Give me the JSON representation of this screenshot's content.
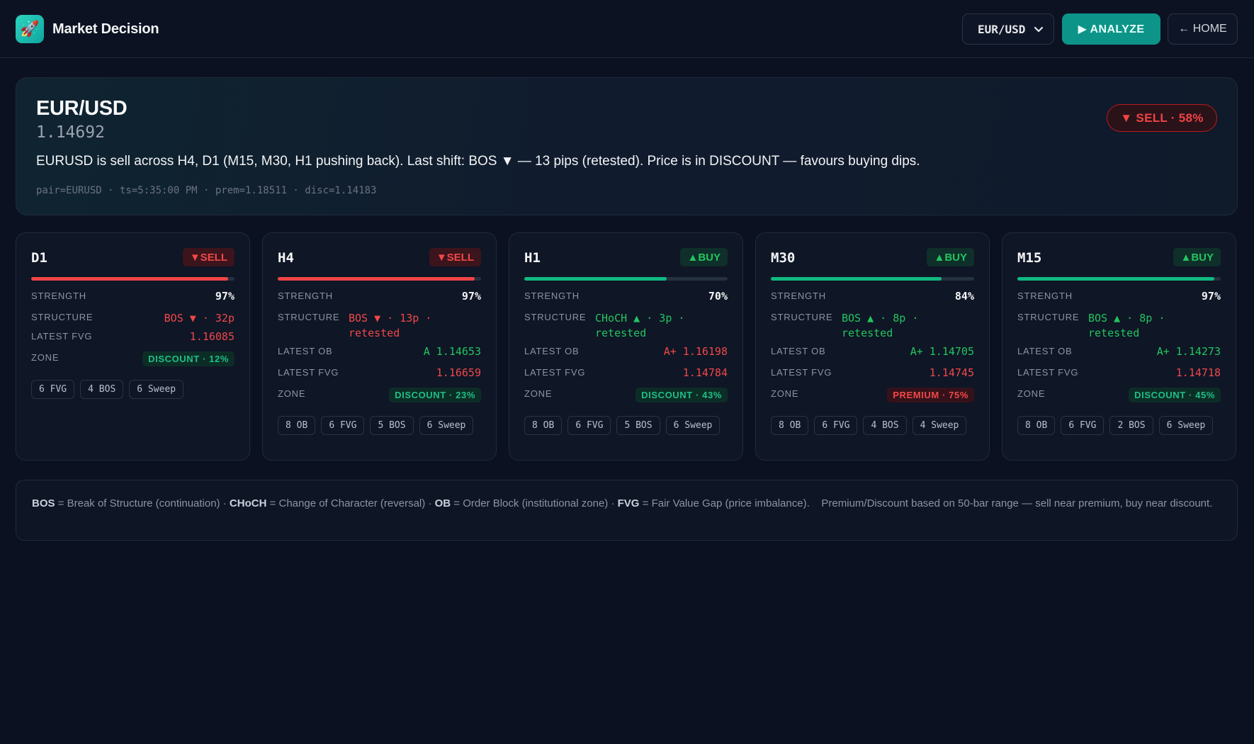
{
  "header": {
    "app_name": "Market Decision",
    "logo_icon": "rocket-icon",
    "pair_select": {
      "value": "EUR/USD"
    },
    "analyze_label": "▶ ANALYZE",
    "home_label": "← HOME"
  },
  "summary": {
    "title": "EUR/USD",
    "price": "1.14692",
    "signal": "▼ SELL · 58%",
    "description": "EURUSD is sell across H4, D1 (M15, M30, H1 pushing back). Last shift: BOS ▼ — 13 pips (retested). Price is in DISCOUNT — favours buying dips.",
    "meta": "pair=EURUSD · ts=5:35:00 PM · prem=1.18511 · disc=1.14183"
  },
  "colors": {
    "sell": "#ef4444",
    "buy": "#10b981",
    "accent": "#0d9488"
  },
  "timeframes": [
    {
      "name": "D1",
      "direction": "sell",
      "badge": "▼SELL",
      "strength_value": 0.97,
      "strength_label": "STRENGTH",
      "strength": "97%",
      "structure_label": "STRUCTURE",
      "structure": "BOS ▼ · 32p",
      "fvg_label": "LATEST FVG",
      "fvg": "1.16085",
      "zone_label": "ZONE",
      "zone": "DISCOUNT · 12%",
      "chips": [
        "6 FVG",
        "4 BOS",
        "6 Sweep"
      ]
    },
    {
      "name": "H4",
      "direction": "sell",
      "badge": "▼SELL",
      "strength_value": 0.97,
      "strength_label": "STRENGTH",
      "strength": "97%",
      "structure_label": "STRUCTURE",
      "structure": "BOS ▼ · 13p · retested",
      "ob_label": "LATEST OB",
      "ob": "A 1.14653",
      "ob_color": "green",
      "fvg_label": "LATEST FVG",
      "fvg": "1.16659",
      "zone_label": "ZONE",
      "zone": "DISCOUNT · 23%",
      "chips": [
        "8 OB",
        "6 FVG",
        "5 BOS",
        "6 Sweep"
      ]
    },
    {
      "name": "H1",
      "direction": "buy",
      "badge": "▲BUY",
      "strength_value": 0.7,
      "strength_label": "STRENGTH",
      "strength": "70%",
      "structure_label": "STRUCTURE",
      "structure": "CHoCH ▲ · 3p · retested",
      "ob_label": "LATEST OB",
      "ob": "A+ 1.16198",
      "ob_color": "red",
      "fvg_label": "LATEST FVG",
      "fvg": "1.14784",
      "zone_label": "ZONE",
      "zone": "DISCOUNT · 43%",
      "chips": [
        "8 OB",
        "6 FVG",
        "5 BOS",
        "6 Sweep"
      ]
    },
    {
      "name": "M30",
      "direction": "buy",
      "badge": "▲BUY",
      "strength_value": 0.84,
      "strength_label": "STRENGTH",
      "strength": "84%",
      "structure_label": "STRUCTURE",
      "structure": "BOS ▲ · 8p · retested",
      "ob_label": "LATEST OB",
      "ob": "A+ 1.14705",
      "ob_color": "green",
      "fvg_label": "LATEST FVG",
      "fvg": "1.14745",
      "zone_label": "ZONE",
      "zone": "PREMIUM · 75%",
      "chips": [
        "8 OB",
        "6 FVG",
        "4 BOS",
        "4 Sweep"
      ]
    },
    {
      "name": "M15",
      "direction": "buy",
      "badge": "▲BUY",
      "strength_value": 0.97,
      "strength_label": "STRENGTH",
      "strength": "97%",
      "structure_label": "STRUCTURE",
      "structure": "BOS ▲ · 8p · retested",
      "ob_label": "LATEST OB",
      "ob": "A+ 1.14273",
      "ob_color": "green",
      "fvg_label": "LATEST FVG",
      "fvg": "1.14718",
      "zone_label": "ZONE",
      "zone": "DISCOUNT · 45%",
      "chips": [
        "8 OB",
        "6 FVG",
        "2 BOS",
        "6 Sweep"
      ]
    }
  ],
  "legend": {
    "bos_term": "BOS",
    "bos_def": "= Break of Structure (continuation)",
    "choch_term": "CHoCH",
    "choch_def": "= Change of Character (reversal)",
    "ob_term": "OB",
    "ob_def": "= Order Block (institutional zone)",
    "fvg_term": "FVG",
    "fvg_def": "= Fair Value Gap (price imbalance).",
    "note": "Premium/Discount based on 50-bar range — sell near premium, buy near discount."
  }
}
